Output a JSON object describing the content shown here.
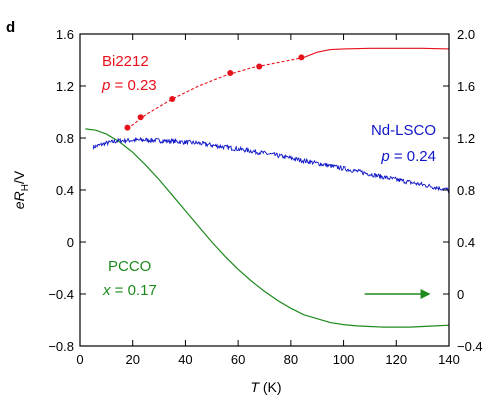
{
  "panel_label": "d",
  "chart_data": {
    "type": "line",
    "xlabel": {
      "symbol": "T",
      "unit": " (K)"
    },
    "ylabel": {
      "prefix": "e",
      "symbol": "R",
      "subscript": "H",
      "suffix": "/V"
    },
    "xlim": [
      0,
      140
    ],
    "ylim_left": [
      -0.8,
      1.6
    ],
    "ylim_right": [
      -0.4,
      2.0
    ],
    "x_ticks": [
      "0",
      "20",
      "40",
      "60",
      "80",
      "100",
      "120",
      "140"
    ],
    "y_left_ticks": [
      "1.6",
      "1.2",
      "0.8",
      "0.4",
      "0",
      "−0.4",
      "−0.8"
    ],
    "y_right_ticks": [
      "2.0",
      "1.6",
      "1.2",
      "0.8",
      "0.4",
      "0",
      "−0.4"
    ],
    "grid": false,
    "series": [
      {
        "label_line1": "Bi2212",
        "label_var": "p",
        "label_value": " = 0.23",
        "color": "#e8111b",
        "axis": "right",
        "points": [
          [
            18,
            1.28
          ],
          [
            23,
            1.36
          ],
          [
            35,
            1.5
          ],
          [
            57,
            1.7
          ],
          [
            68,
            1.75
          ],
          [
            84,
            1.82
          ]
        ],
        "dashed_fit": [
          [
            18,
            1.27
          ],
          [
            25,
            1.38
          ],
          [
            35,
            1.5
          ],
          [
            45,
            1.6
          ],
          [
            55,
            1.68
          ],
          [
            65,
            1.74
          ],
          [
            75,
            1.78
          ],
          [
            85,
            1.82
          ]
        ],
        "solid_fit": [
          [
            85,
            1.82
          ],
          [
            90,
            1.86
          ],
          [
            95,
            1.88
          ],
          [
            100,
            1.885
          ],
          [
            110,
            1.89
          ],
          [
            120,
            1.89
          ],
          [
            130,
            1.89
          ],
          [
            140,
            1.885
          ]
        ]
      },
      {
        "label_line1": "Nd-LSCO",
        "label_var": "p",
        "label_value": " = 0.24",
        "color": "#1017c8",
        "axis": "left",
        "noisy": true,
        "points": [
          [
            5,
            0.73
          ],
          [
            10,
            0.76
          ],
          [
            15,
            0.78
          ],
          [
            25,
            0.785
          ],
          [
            35,
            0.775
          ],
          [
            45,
            0.76
          ],
          [
            55,
            0.73
          ],
          [
            65,
            0.7
          ],
          [
            75,
            0.665
          ],
          [
            85,
            0.625
          ],
          [
            95,
            0.585
          ],
          [
            105,
            0.545
          ],
          [
            115,
            0.5
          ],
          [
            125,
            0.46
          ],
          [
            135,
            0.42
          ],
          [
            140,
            0.4
          ]
        ]
      },
      {
        "label_line1": "PCCO",
        "label_var": "x",
        "label_value": " = 0.17",
        "color": "#1e8a1e",
        "axis": "right",
        "points": [
          [
            2,
            1.27
          ],
          [
            6,
            1.26
          ],
          [
            10,
            1.23
          ],
          [
            15,
            1.17
          ],
          [
            20,
            1.09
          ],
          [
            25,
            0.99
          ],
          [
            30,
            0.88
          ],
          [
            35,
            0.76
          ],
          [
            40,
            0.64
          ],
          [
            45,
            0.52
          ],
          [
            50,
            0.4
          ],
          [
            55,
            0.29
          ],
          [
            60,
            0.19
          ],
          [
            65,
            0.1
          ],
          [
            70,
            0.02
          ],
          [
            75,
            -0.05
          ],
          [
            80,
            -0.11
          ],
          [
            85,
            -0.16
          ],
          [
            90,
            -0.19
          ],
          [
            95,
            -0.22
          ],
          [
            100,
            -0.235
          ],
          [
            105,
            -0.245
          ],
          [
            110,
            -0.25
          ],
          [
            115,
            -0.255
          ],
          [
            120,
            -0.255
          ],
          [
            125,
            -0.255
          ],
          [
            130,
            -0.25
          ],
          [
            135,
            -0.245
          ],
          [
            140,
            -0.24
          ]
        ]
      }
    ],
    "annotation": {
      "type": "arrow",
      "color": "#1e8a1e",
      "from": [
        108,
        0
      ],
      "to": [
        133,
        0
      ],
      "axis": "right"
    }
  }
}
